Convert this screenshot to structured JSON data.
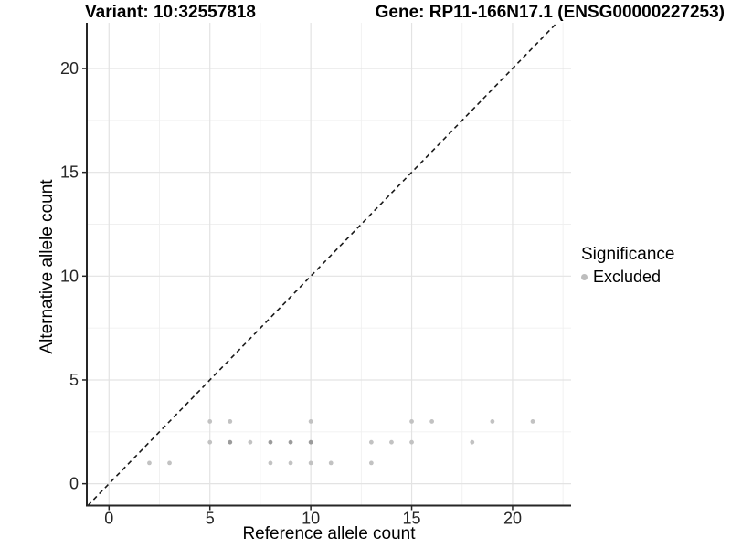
{
  "figure": {
    "title_left": "Variant: 10:32557818",
    "title_right": "Gene: RP11-166N17.1 (ENSG00000227253)"
  },
  "chart_data": {
    "type": "scatter",
    "xlabel": "Reference allele count",
    "ylabel": "Alternative allele count",
    "xlim": [
      -1.1,
      22.9
    ],
    "ylim": [
      -1.05,
      22.2
    ],
    "xticks": [
      0,
      5,
      10,
      15,
      20
    ],
    "yticks": [
      0,
      5,
      10,
      15,
      20
    ],
    "minor_grid_offset": 2.5,
    "grid": "major-and-minor",
    "background": "#ffffff",
    "major_grid_color": "#e3e3e3",
    "minor_grid_color": "#f0f0f0",
    "axis_line_color": "#262626",
    "identity_line": {
      "equation": "y = x",
      "style": "dashed",
      "color": "#1a1a1a"
    },
    "legend": {
      "position": "right",
      "title": "Significance",
      "entries": [
        {
          "label": "Excluded",
          "color": "#bdbdbd"
        }
      ]
    },
    "series": [
      {
        "name": "Excluded",
        "color": "#c2c2c2",
        "overlap_color": "#9b9b9b",
        "points": [
          {
            "x": 2,
            "y": 1
          },
          {
            "x": 3,
            "y": 1
          },
          {
            "x": 8,
            "y": 1
          },
          {
            "x": 9,
            "y": 1
          },
          {
            "x": 10,
            "y": 1
          },
          {
            "x": 11,
            "y": 1
          },
          {
            "x": 13,
            "y": 1
          },
          {
            "x": 5,
            "y": 2
          },
          {
            "x": 6,
            "y": 2,
            "overlap": true
          },
          {
            "x": 7,
            "y": 2
          },
          {
            "x": 8,
            "y": 2,
            "overlap": true
          },
          {
            "x": 9,
            "y": 2,
            "overlap": true
          },
          {
            "x": 10,
            "y": 2,
            "overlap": true
          },
          {
            "x": 13,
            "y": 2
          },
          {
            "x": 14,
            "y": 2
          },
          {
            "x": 15,
            "y": 2
          },
          {
            "x": 18,
            "y": 2
          },
          {
            "x": 5,
            "y": 3
          },
          {
            "x": 6,
            "y": 3
          },
          {
            "x": 10,
            "y": 3
          },
          {
            "x": 15,
            "y": 3
          },
          {
            "x": 16,
            "y": 3
          },
          {
            "x": 19,
            "y": 3
          },
          {
            "x": 21,
            "y": 3
          }
        ]
      }
    ]
  }
}
